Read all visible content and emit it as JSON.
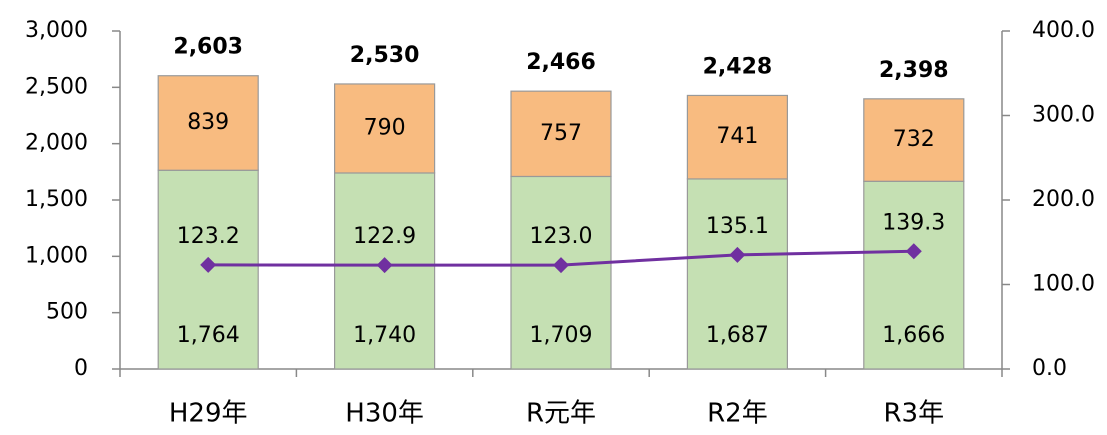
{
  "chart_data": {
    "type": "stacked-bar-line",
    "categories": [
      "H29年",
      "H30年",
      "R元年",
      "R2年",
      "R3年"
    ],
    "series": [
      {
        "color": "#c5e0b3",
        "values": [
          1764,
          1740,
          1709,
          1687,
          1666
        ],
        "value_labels": [
          "1,764",
          "1,740",
          "1,709",
          "1,687",
          "1,666"
        ]
      },
      {
        "color": "#f8bb80",
        "values": [
          839,
          790,
          757,
          741,
          732
        ]
      },
      {
        "type": "line",
        "axis": "y2",
        "color": "#7030a0",
        "values": [
          123.2,
          122.9,
          123.0,
          135.1,
          139.3
        ],
        "value_labels": [
          "123.2",
          "122.9",
          "123.0",
          "135.1",
          "139.3"
        ]
      }
    ],
    "totals": {
      "values": [
        2603,
        2530,
        2466,
        2428,
        2398
      ],
      "value_labels": [
        "2,603",
        "2,530",
        "2,466",
        "2,428",
        "2,398"
      ]
    },
    "ylim": [
      0,
      3000
    ],
    "yticks": [
      0,
      500,
      {
        "value": 1000,
        "label": "1,000"
      },
      {
        "value": 1500,
        "label": "1,500"
      },
      {
        "value": 2000,
        "label": "2,000"
      },
      {
        "value": 2500,
        "label": "2,500"
      },
      {
        "value": 3000,
        "label": "3,000"
      }
    ],
    "y2lim": [
      0,
      400
    ],
    "y2ticks": [
      {
        "value": 0,
        "label": "0.0"
      },
      {
        "value": 100,
        "label": "100.0"
      },
      {
        "value": 200,
        "label": "200.0"
      },
      {
        "value": 300,
        "label": "300.0"
      },
      {
        "value": 400,
        "label": "400.0"
      }
    ]
  }
}
